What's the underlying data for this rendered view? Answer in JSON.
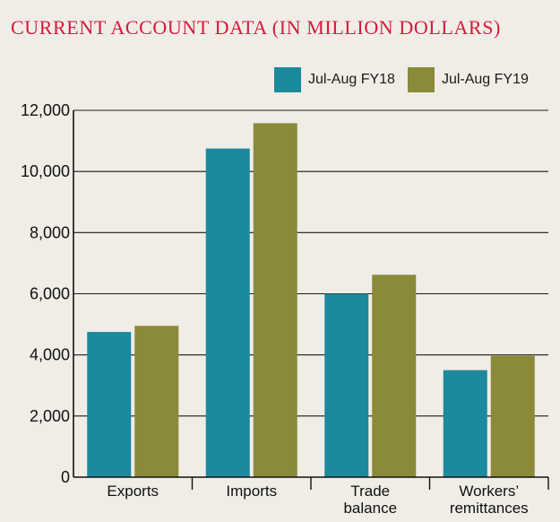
{
  "chart_data": {
    "type": "bar",
    "title": "Current Account Data (in million dollars)",
    "categories": [
      "Exports",
      "Imports",
      "Trade balance",
      "Workers’ remittances"
    ],
    "category_lines": [
      [
        "Exports"
      ],
      [
        "Imports"
      ],
      [
        "Trade",
        "balance"
      ],
      [
        "Workers’",
        "remittances"
      ]
    ],
    "series": [
      {
        "name": "Jul-Aug FY18",
        "color": "#1b8a9c",
        "values": [
          4750,
          10750,
          6000,
          3500
        ]
      },
      {
        "name": "Jul-Aug FY19",
        "color": "#8a8a38",
        "values": [
          4950,
          11580,
          6620,
          3970
        ]
      }
    ],
    "ylim": [
      0,
      12000
    ],
    "yticks": [
      0,
      2000,
      4000,
      6000,
      8000,
      10000,
      12000
    ],
    "ytick_labels": [
      "0",
      "2,000",
      "4,000",
      "6,000",
      "8,000",
      "10,000",
      "12,000"
    ],
    "xlabel": "",
    "ylabel": "",
    "grid": true,
    "legend_position": "top-right"
  }
}
